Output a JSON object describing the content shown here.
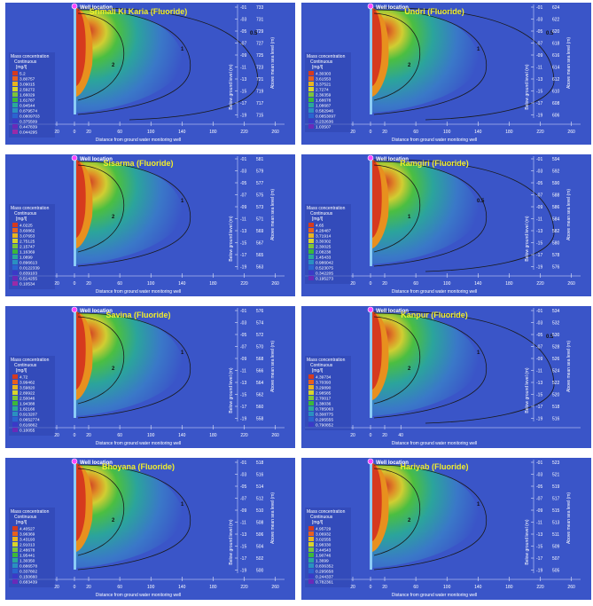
{
  "common": {
    "well_location_label": "Well location",
    "legend_title_1": "Mass concentration",
    "legend_title_2": "Continuous",
    "legend_unit": "[mg/l]",
    "x_axis_label": "Distance from ground water monitoring well",
    "left_axis_label": "Below ground level (m)",
    "right_axis_label": "Above mean sea level (m)",
    "colors": {
      "background": "#3a55c8",
      "plume_red": "#d63a1e",
      "plume_orange": "#e8901e",
      "plume_yellow": "#d8d42a",
      "plume_green": "#4cc43a",
      "plume_teal": "#2aa89a",
      "contour": "#1a1a1a",
      "title": "#f2ee2a",
      "axis_text": "#ffffff"
    },
    "legend_swatch_colors": [
      "#d63a1e",
      "#e8601e",
      "#e8b41e",
      "#d8d42a",
      "#7cc43a",
      "#3cb83a",
      "#2aa89a",
      "#2a90c0",
      "#2a64d0",
      "#3a3ac8",
      "#6a2ab8",
      "#9a2aa8"
    ]
  },
  "chart_data": [
    {
      "type": "heatmap",
      "title": "Srimali Ki Karia (Fluoride)",
      "x_ticks": [
        "20",
        "0",
        "20",
        "60",
        "100",
        "140",
        "180",
        "220",
        "260"
      ],
      "depth_ticks": [
        "-01",
        "-03",
        "-05",
        "-07",
        "-09",
        "-11",
        "-13",
        "-15",
        "-17",
        "-19"
      ],
      "elevation_ticks": [
        "733",
        "731",
        "729",
        "727",
        "725",
        "723",
        "721",
        "719",
        "717",
        "715"
      ],
      "contour_labels": [
        "2",
        "1",
        "0.5"
      ],
      "legend_values": [
        "5.2",
        "3.80757",
        "3.09015",
        "2.59272",
        "1.66029",
        "1.61787",
        "0.94544",
        "0.879574",
        "0.0809703",
        "0.375509",
        "0.447839",
        "0.044295"
      ]
    },
    {
      "type": "heatmap",
      "title": "Undri (Fluoride)",
      "x_ticks": [
        "20",
        "0",
        "20",
        "60",
        "100",
        "140",
        "180",
        "220",
        "260",
        "300"
      ],
      "depth_ticks": [
        "-01",
        "-03",
        "-05",
        "-07",
        "-09",
        "-11",
        "-13",
        "-15",
        "-17",
        "-19"
      ],
      "elevation_ticks": [
        "624",
        "622",
        "620",
        "618",
        "616",
        "614",
        "612",
        "610",
        "608",
        "606"
      ],
      "contour_labels": [
        "2",
        "1",
        "0.5"
      ],
      "legend_values": [
        "4.30303",
        "3.61553",
        "3.37521",
        "2.7274",
        "2.36359",
        "1.68678",
        "1.08687",
        "0.582946",
        "0.0853097",
        "0.232636",
        "1.03507"
      ]
    },
    {
      "type": "heatmap",
      "title": "Sisarma (Fluoride)",
      "x_ticks": [
        "20",
        "0",
        "20",
        "60",
        "100",
        "140",
        "180",
        "220",
        "260"
      ],
      "depth_ticks": [
        "-01",
        "-03",
        "-05",
        "-07",
        "-09",
        "-11",
        "-13",
        "-15",
        "-17",
        "-19"
      ],
      "elevation_ticks": [
        "581",
        "579",
        "577",
        "575",
        "573",
        "571",
        "569",
        "567",
        "565",
        "563"
      ],
      "contour_labels": [
        "2",
        "1"
      ],
      "legend_values": [
        "4.0225",
        "3.60862",
        "3.07653",
        "2.75125",
        "2.15747",
        "1.16369",
        "1.0899",
        "0.896613",
        "0.0122339",
        "0.839103",
        "0.514255",
        "0.10534"
      ]
    },
    {
      "type": "heatmap",
      "title": "Ramgiri (Fluoride)",
      "x_ticks": [
        "20",
        "0",
        "20",
        "60",
        "100",
        "140",
        "180",
        "220",
        "260",
        "300"
      ],
      "depth_ticks": [
        "-01",
        "-03",
        "-05",
        "-07",
        "-09",
        "-11",
        "-13",
        "-15",
        "-17",
        "-19"
      ],
      "elevation_ticks": [
        "594",
        "592",
        "590",
        "588",
        "586",
        "584",
        "582",
        "580",
        "578",
        "576"
      ],
      "contour_labels": [
        "1",
        "0.5"
      ],
      "legend_values": [
        "4.65",
        "4.28487",
        "3.71914",
        "3.30302",
        "2.30025",
        "2.08238",
        "1.45433",
        "0.986042",
        "0.523075",
        "0.342205",
        "0.195273"
      ]
    },
    {
      "type": "heatmap",
      "title": "Savina (Fluoride)",
      "x_ticks": [
        "20",
        "0",
        "20",
        "60",
        "100",
        "140",
        "180",
        "220",
        "260",
        "300"
      ],
      "depth_ticks": [
        "-01",
        "-03",
        "-05",
        "-07",
        "-09",
        "-11",
        "-13",
        "-15",
        "-17",
        "-19"
      ],
      "elevation_ticks": [
        "576",
        "574",
        "572",
        "570",
        "568",
        "566",
        "564",
        "562",
        "560",
        "558"
      ],
      "contour_labels": [
        "2",
        "1"
      ],
      "legend_values": [
        "4.72",
        "3.99462",
        "3.59820",
        "2.89922",
        "2.50046",
        "1.94388",
        "1.82166",
        "0.913207",
        "0.0652774",
        "0.616862",
        "0.10055"
      ]
    },
    {
      "type": "heatmap",
      "title": "Kanpur (Fluoride)",
      "x_ticks": [
        "20",
        "0",
        "20",
        "40"
      ],
      "depth_ticks": [
        "-01",
        "-03",
        "-05",
        "-07",
        "-09",
        "-11",
        "-13",
        "-15",
        "-17",
        "-19"
      ],
      "elevation_ticks": [
        "534",
        "532",
        "530",
        "528",
        "526",
        "524",
        "522",
        "520",
        "518",
        "516"
      ],
      "contour_labels": [
        "2",
        "1",
        "0.5"
      ],
      "legend_values": [
        "4.39734",
        "3.70393",
        "3.29890",
        "2.98585",
        "2.70017",
        "1.38036",
        "0.785063",
        "0.308775",
        "0.295555",
        "0.790852"
      ]
    },
    {
      "type": "heatmap",
      "title": "Bhoyana (Fluoride)",
      "x_ticks": [
        "20",
        "0",
        "20",
        "60",
        "100",
        "140",
        "180",
        "220",
        "260",
        "300"
      ],
      "depth_ticks": [
        "-01",
        "-03",
        "-05",
        "-07",
        "-09",
        "-11",
        "-13",
        "-15",
        "-17",
        "-19"
      ],
      "elevation_ticks": [
        "518",
        "516",
        "514",
        "512",
        "510",
        "508",
        "506",
        "504",
        "502",
        "500"
      ],
      "contour_labels": [
        "2",
        "1"
      ],
      "legend_values": [
        "4.40527",
        "3.96369",
        "3.43193",
        "2.91013",
        "2.48678",
        "1.95441",
        "1.30350",
        "0.886578",
        "0.337802",
        "0.150660",
        "0.683439"
      ]
    },
    {
      "type": "heatmap",
      "title": "Hariyab (Fluoride)",
      "x_ticks": [
        "20",
        "0",
        "20",
        "60",
        "100",
        "140",
        "180",
        "220",
        "260",
        "300"
      ],
      "depth_ticks": [
        "-01",
        "-03",
        "-05",
        "-07",
        "-09",
        "-11",
        "-13",
        "-15",
        "-17",
        "-19"
      ],
      "elevation_ticks": [
        "523",
        "521",
        "519",
        "517",
        "515",
        "513",
        "511",
        "509",
        "507",
        "505"
      ],
      "contour_labels": [
        "2",
        "1"
      ],
      "legend_values": [
        "4.95729",
        "3.06932",
        "3.02555",
        "2.98330",
        "2.44543",
        "1.90746",
        "1.3699",
        "0.836352",
        "0.295658",
        "0.244337",
        "0.782361"
      ]
    }
  ]
}
